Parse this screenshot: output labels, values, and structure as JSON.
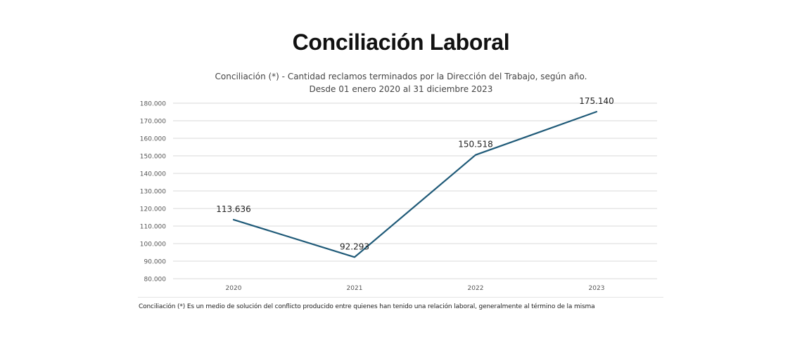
{
  "page": {
    "title": "Conciliación Laboral"
  },
  "chart_data": {
    "type": "line",
    "title_line1": "Conciliación (*) - Cantidad reclamos terminados por la Dirección del Trabajo, según año.",
    "title_line2": "Desde 01 enero 2020 al 31 diciembre 2023",
    "categories": [
      "2020",
      "2021",
      "2022",
      "2023"
    ],
    "values": [
      113636,
      92293,
      150518,
      175140
    ],
    "data_labels": [
      "113.636",
      "92.293",
      "150.518",
      "175.140"
    ],
    "ylim": [
      80000,
      180000
    ],
    "y_ticks": [
      80000,
      90000,
      100000,
      110000,
      120000,
      130000,
      140000,
      150000,
      160000,
      170000,
      180000
    ],
    "y_tick_labels": [
      "80.000",
      "90.000",
      "100.000",
      "110.000",
      "120.000",
      "130.000",
      "140.000",
      "150.000",
      "160.000",
      "170.000",
      "180.000"
    ],
    "grid": true,
    "line_color": "#1f5a78",
    "gridline_color": "#d9d9d9"
  },
  "footnote": "Conciliación (*) Es un medio de solución del conflicto producido entre quienes han tenido una relación laboral, generalmente al término de la misma"
}
